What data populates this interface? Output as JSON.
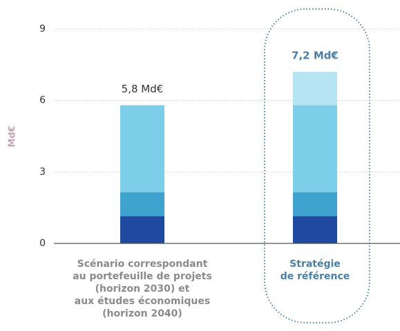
{
  "chart_data": {
    "type": "stacked_bar",
    "y_label": "Md€",
    "categories": [
      "Scénario correspondant\nau portefeuille de projets\n(horizon 2030) et\naux études économiques\n(horizon 2040)",
      "Stratégie\nde référence"
    ],
    "series": [
      {
        "color": "#1f4aa0",
        "values": [
          1.15,
          1.15
        ]
      },
      {
        "color": "#3ea3cf",
        "values": [
          1.0,
          1.0
        ]
      },
      {
        "color": "#7dcfe9",
        "values": [
          3.65,
          3.65
        ]
      },
      {
        "color": "#b6e4f3",
        "values": [
          null,
          1.4
        ]
      }
    ],
    "totals": [
      5.8,
      7.2
    ],
    "total_labels": [
      "5,8 Md€",
      "7,2 Md€"
    ],
    "highlight_index": 1,
    "ylim": [
      0,
      9
    ],
    "yticks": [
      0,
      3,
      6,
      9
    ],
    "grid": true
  }
}
